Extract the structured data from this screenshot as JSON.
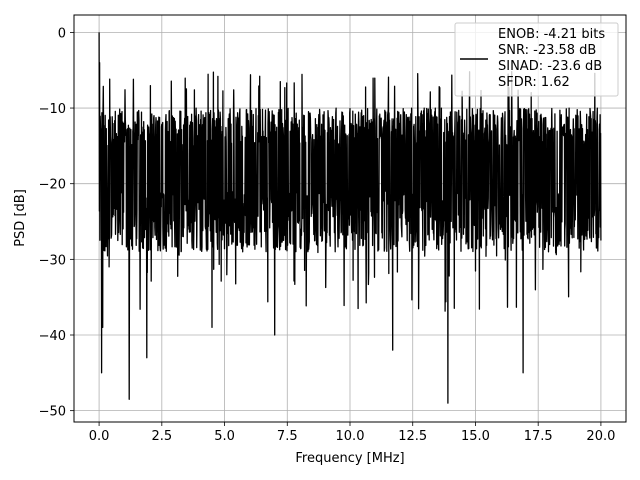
{
  "chart_data": {
    "type": "line",
    "title": "",
    "xlabel": "Frequency [MHz]",
    "ylabel": "PSD [dB]",
    "xlim": [
      -1.0,
      21.0
    ],
    "ylim": [
      -51.5,
      2.3
    ],
    "x_ticks": [
      0.0,
      2.5,
      5.0,
      7.5,
      10.0,
      12.5,
      15.0,
      17.5,
      20.0
    ],
    "x_tick_labels": [
      "0.0",
      "2.5",
      "5.0",
      "7.5",
      "10.0",
      "12.5",
      "15.0",
      "17.5",
      "20.0"
    ],
    "y_ticks": [
      0,
      -10,
      -20,
      -30,
      -40,
      -50
    ],
    "y_tick_labels": [
      "0",
      "−10",
      "−20",
      "−30",
      "−40",
      "−50"
    ],
    "grid": true,
    "legend_position": "top-right",
    "legend_lines": [
      "ENOB: -4.21 bits",
      "SNR: -23.58 dB",
      "SINAD: -23.6 dB",
      "SFDR: 1.62"
    ],
    "line_color": "#000000",
    "series": [
      {
        "x_start": 0.0,
        "x_end": 20.0,
        "spikes": [
          {
            "x": 0.0,
            "y": 0
          },
          {
            "x": 0.02,
            "y": -4
          },
          {
            "x": 0.1,
            "y": -45
          },
          {
            "x": 0.15,
            "y": -39
          },
          {
            "x": 0.4,
            "y": -31
          },
          {
            "x": 1.2,
            "y": -48.5
          },
          {
            "x": 1.9,
            "y": -43
          },
          {
            "x": 4.5,
            "y": -39
          },
          {
            "x": 7.0,
            "y": -40
          },
          {
            "x": 11.7,
            "y": -42
          },
          {
            "x": 13.9,
            "y": -49
          },
          {
            "x": 16.9,
            "y": -45
          }
        ],
        "upper_envelope": -11,
        "lower_envelope": -27
      }
    ]
  }
}
